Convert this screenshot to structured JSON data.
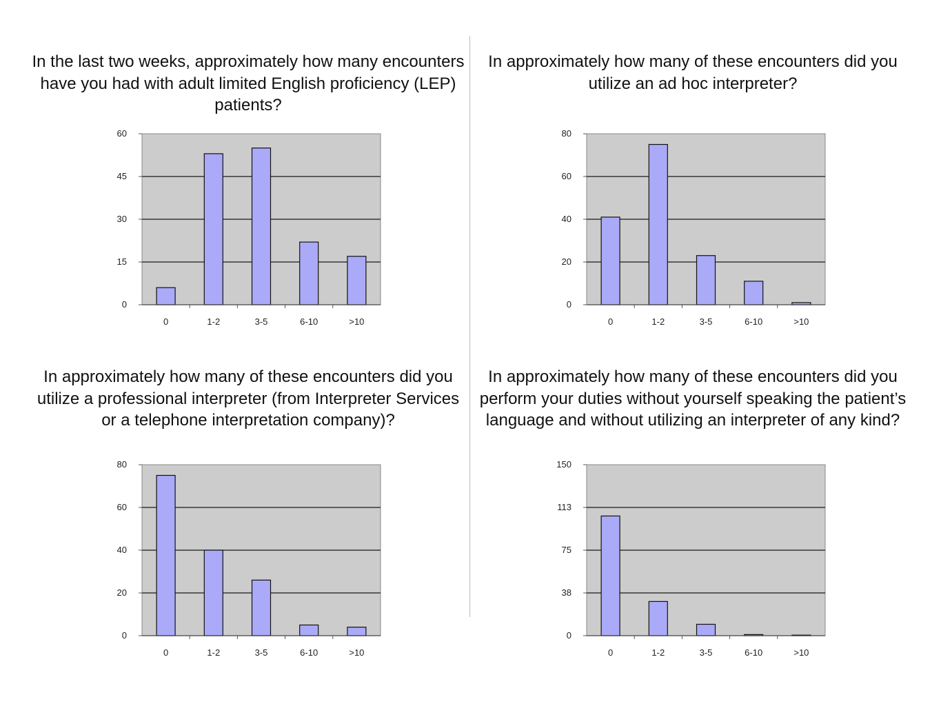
{
  "chart_data": [
    {
      "type": "bar",
      "title": "In the last two weeks, approximately how many encounters have you had with adult limited English proficiency (LEP) patients?",
      "categories": [
        "0",
        "1-2",
        "3-5",
        "6-10",
        ">10"
      ],
      "values": [
        6,
        53,
        55,
        22,
        17
      ],
      "yticks": [
        "0",
        "15",
        "30",
        "45",
        "60"
      ],
      "ylim": [
        0,
        60
      ],
      "grid": true,
      "bar_color": "#aaaaf8",
      "plot_bg": "#cccccc"
    },
    {
      "type": "bar",
      "title": "In approximately how many of these encounters did you utilize an ad hoc interpreter?",
      "categories": [
        "0",
        "1-2",
        "3-5",
        "6-10",
        ">10"
      ],
      "values": [
        41,
        75,
        23,
        11,
        1
      ],
      "yticks": [
        "0",
        "20",
        "40",
        "60",
        "80"
      ],
      "ylim": [
        0,
        80
      ],
      "grid": true,
      "bar_color": "#aaaaf8",
      "plot_bg": "#cccccc"
    },
    {
      "type": "bar",
      "title": "In approximately how many of these encounters did you utilize a professional interpreter (from Interpreter Services or a telephone interpretation company)?",
      "categories": [
        "0",
        "1-2",
        "3-5",
        "6-10",
        ">10"
      ],
      "values": [
        75,
        40,
        26,
        5,
        4
      ],
      "yticks": [
        "0",
        "20",
        "40",
        "60",
        "80"
      ],
      "ylim": [
        0,
        80
      ],
      "grid": true,
      "bar_color": "#aaaaf8",
      "plot_bg": "#cccccc"
    },
    {
      "type": "bar",
      "title": "In approximately how many of these encounters did you perform your duties without yourself speaking the patient’s language and without utilizing an interpreter of any kind?",
      "categories": [
        "0",
        "1-2",
        "3-5",
        "6-10",
        ">10"
      ],
      "values": [
        105,
        30,
        10,
        1,
        0.5
      ],
      "yticks": [
        "0",
        "38",
        "75",
        "113",
        "150"
      ],
      "ylim": [
        0,
        150
      ],
      "grid": true,
      "bar_color": "#aaaaf8",
      "plot_bg": "#cccccc"
    }
  ]
}
